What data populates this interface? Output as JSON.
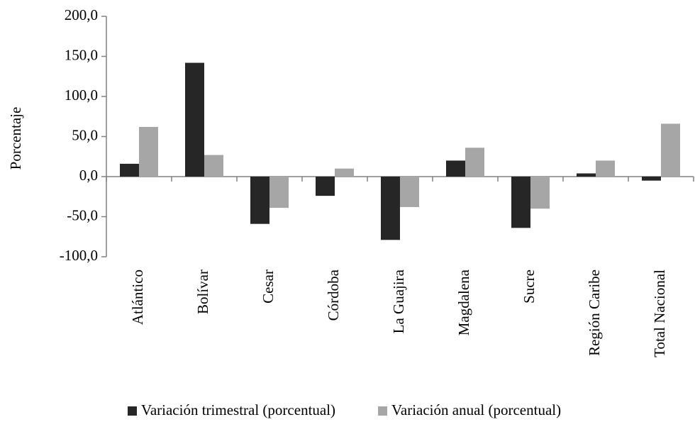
{
  "chart_data": {
    "type": "bar",
    "categories": [
      "Atlántico",
      "Bolívar",
      "Cesar",
      "Córdoba",
      "La Guajira",
      "Magdalena",
      "Sucre",
      "Región Caribe",
      "Total Nacional"
    ],
    "series": [
      {
        "name": "Variación trimestral (porcentual)",
        "color": "#262626",
        "values": [
          16,
          142,
          -59,
          -24,
          -79,
          20,
          -64,
          4,
          -5
        ]
      },
      {
        "name": "Variación anual (porcentual)",
        "color": "#a6a6a6",
        "values": [
          62,
          27,
          -39,
          10,
          -38,
          36,
          -40,
          20,
          66
        ]
      }
    ],
    "y_label": "Porcentaje",
    "ylim": [
      -100,
      200
    ],
    "yticks": [
      {
        "value": -100,
        "label": "-100,0"
      },
      {
        "value": -50,
        "label": "-50,0"
      },
      {
        "value": 0,
        "label": "0,0"
      },
      {
        "value": 50,
        "label": "50,0"
      },
      {
        "value": 100,
        "label": "100,0"
      },
      {
        "value": 150,
        "label": "150,0"
      },
      {
        "value": 200,
        "label": "200,0"
      }
    ]
  }
}
